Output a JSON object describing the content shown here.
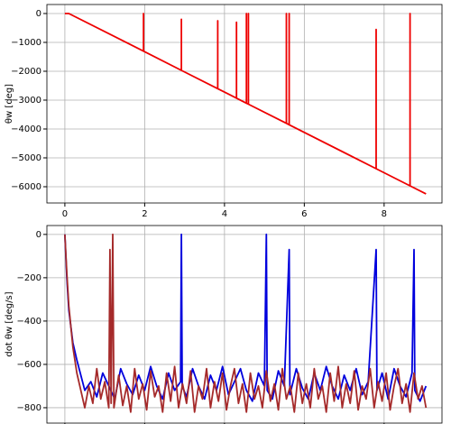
{
  "chart_data": [
    {
      "type": "line",
      "ylabel": "θw [deg]",
      "xlim": [
        -0.45,
        9.45
      ],
      "xticks": [
        0,
        2,
        4,
        6,
        8
      ],
      "ylim": [
        -6563,
        312
      ],
      "yticks": [
        0,
        {
          "value": -1000,
          "label": "−1000"
        },
        {
          "value": -2000,
          "label": "−2000"
        },
        {
          "value": -3000,
          "label": "−3000"
        },
        {
          "value": -4000,
          "label": "−4000"
        },
        {
          "value": -5000,
          "label": "−5000"
        },
        {
          "value": -6000,
          "label": "−6000"
        }
      ],
      "grid": true,
      "series": [
        {
          "color": "#ee0000",
          "x": [
            0,
            0.1,
            1.97,
            1.97,
            1.97,
            2.92,
            2.92,
            2.92,
            3.83,
            3.83,
            3.83,
            4.3,
            4.3,
            4.3,
            4.55,
            4.55,
            4.55,
            4.6,
            4.6,
            4.6,
            5.55,
            5.55,
            5.55,
            5.62,
            5.62,
            5.62,
            7.8,
            7.8,
            7.8,
            8.65,
            8.65,
            8.65,
            9.05
          ],
          "values": [
            0,
            0,
            -1305,
            0,
            -1305,
            -1968,
            -200,
            -1968,
            -2604,
            -250,
            -2604,
            -2932,
            -300,
            -2932,
            -3106,
            0,
            -3106,
            -3141,
            0,
            -3141,
            -3804,
            0,
            -3804,
            -3853,
            0,
            -3853,
            -5375,
            -550,
            -5375,
            -5968,
            0,
            -5968,
            -6247
          ]
        }
      ]
    },
    {
      "type": "line",
      "ylabel": "dot θw [deg/s]",
      "xlim": [
        -0.45,
        9.45
      ],
      "xticks": [
        0,
        2,
        4,
        6,
        8
      ],
      "ylim": [
        -871,
        41
      ],
      "yticks": [
        0,
        {
          "value": -200,
          "label": "−200"
        },
        {
          "value": -400,
          "label": "−400"
        },
        {
          "value": -600,
          "label": "−600"
        },
        {
          "value": -800,
          "label": "−800"
        }
      ],
      "grid": true,
      "series": [
        {
          "color": "#0000dd",
          "x": [
            0,
            0.05,
            0.1,
            0.2,
            0.3,
            0.4,
            0.5,
            0.65,
            0.8,
            0.95,
            1.1,
            1.25,
            1.4,
            1.55,
            1.7,
            1.85,
            2.0,
            2.15,
            2.3,
            2.45,
            2.6,
            2.75,
            2.9,
            2.92,
            2.94,
            3.05,
            3.2,
            3.35,
            3.5,
            3.65,
            3.8,
            3.95,
            4.1,
            4.25,
            4.4,
            4.55,
            4.7,
            4.85,
            5.0,
            5.05,
            5.07,
            5.2,
            5.35,
            5.5,
            5.62,
            5.64,
            5.8,
            5.95,
            6.1,
            6.25,
            6.4,
            6.55,
            6.7,
            6.85,
            7.0,
            7.15,
            7.3,
            7.45,
            7.6,
            7.8,
            7.82,
            7.95,
            8.1,
            8.25,
            8.4,
            8.55,
            8.7,
            8.75,
            8.77,
            8.9,
            9.05
          ],
          "values": [
            0,
            -200,
            -350,
            -500,
            -580,
            -650,
            -720,
            -680,
            -750,
            -640,
            -700,
            -760,
            -620,
            -690,
            -740,
            -650,
            -720,
            -610,
            -700,
            -760,
            -640,
            -720,
            -680,
            0,
            -700,
            -750,
            -620,
            -700,
            -760,
            -650,
            -720,
            -610,
            -740,
            -680,
            -620,
            -720,
            -770,
            -640,
            -700,
            0,
            -720,
            -760,
            -630,
            -700,
            -70,
            -740,
            -620,
            -710,
            -760,
            -640,
            -720,
            -610,
            -700,
            -760,
            -650,
            -720,
            -620,
            -740,
            -680,
            -70,
            -720,
            -640,
            -760,
            -620,
            -700,
            -750,
            -640,
            -70,
            -720,
            -770,
            -700
          ]
        },
        {
          "color": "#a52a2a",
          "x": [
            0,
            0.05,
            0.1,
            0.2,
            0.3,
            0.4,
            0.5,
            0.6,
            0.7,
            0.8,
            0.9,
            1.0,
            1.1,
            1.13,
            1.16,
            1.2,
            1.23,
            1.35,
            1.45,
            1.55,
            1.65,
            1.75,
            1.85,
            1.95,
            2.05,
            2.15,
            2.25,
            2.35,
            2.45,
            2.55,
            2.65,
            2.75,
            2.85,
            2.95,
            3.05,
            3.15,
            3.25,
            3.35,
            3.45,
            3.55,
            3.65,
            3.75,
            3.85,
            3.95,
            4.05,
            4.15,
            4.25,
            4.35,
            4.45,
            4.55,
            4.65,
            4.75,
            4.85,
            4.95,
            5.05,
            5.15,
            5.25,
            5.35,
            5.45,
            5.55,
            5.65,
            5.75,
            5.85,
            5.95,
            6.05,
            6.15,
            6.25,
            6.35,
            6.45,
            6.55,
            6.65,
            6.75,
            6.85,
            6.95,
            7.05,
            7.15,
            7.25,
            7.35,
            7.45,
            7.55,
            7.65,
            7.75,
            7.85,
            7.95,
            8.05,
            8.15,
            8.25,
            8.35,
            8.45,
            8.55,
            8.65,
            8.75,
            8.85,
            8.95,
            9.05
          ],
          "values": [
            0,
            -180,
            -330,
            -520,
            -640,
            -720,
            -800,
            -700,
            -780,
            -620,
            -760,
            -680,
            -800,
            -70,
            -780,
            0,
            -800,
            -650,
            -790,
            -700,
            -820,
            -620,
            -760,
            -690,
            -810,
            -630,
            -750,
            -700,
            -820,
            -640,
            -770,
            -610,
            -800,
            -690,
            -780,
            -630,
            -820,
            -700,
            -760,
            -620,
            -800,
            -680,
            -770,
            -640,
            -810,
            -700,
            -620,
            -780,
            -690,
            -820,
            -640,
            -760,
            -700,
            -800,
            -630,
            -770,
            -690,
            -810,
            -620,
            -760,
            -700,
            -820,
            -640,
            -780,
            -690,
            -800,
            -620,
            -760,
            -700,
            -820,
            -640,
            -770,
            -610,
            -800,
            -690,
            -780,
            -630,
            -810,
            -700,
            -760,
            -620,
            -800,
            -680,
            -770,
            -640,
            -810,
            -700,
            -620,
            -780,
            -690,
            -820,
            -640,
            -760,
            -700,
            -800
          ]
        }
      ]
    }
  ]
}
